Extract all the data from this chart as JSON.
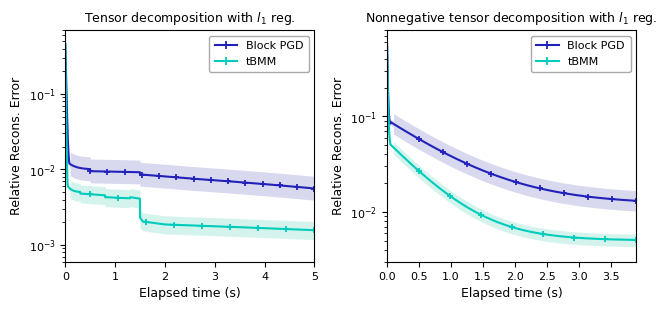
{
  "left_title": "Tensor decomposition with $l_1$ reg.",
  "right_title": "Nonnegative tensor decomposition with $l_1$ reg.",
  "xlabel": "Elapsed time (s)",
  "ylabel": "Relative Recons. Error",
  "color_pgd": "#2222bb",
  "color_tbmm": "#00ccbb",
  "color_pgd_fill": "#aaaadd",
  "color_tbmm_fill": "#88ddcc",
  "left_xlim": [
    0,
    5
  ],
  "left_ylim": [
    0.0006,
    0.7
  ],
  "left_xticks": [
    0,
    1,
    2,
    3,
    4,
    5
  ],
  "left_yticks": [
    0.001,
    0.01,
    0.1
  ],
  "right_xlim": [
    0.0,
    3.9
  ],
  "right_ylim": [
    0.003,
    0.8
  ],
  "right_xticks": [
    0.0,
    0.5,
    1.0,
    1.5,
    2.0,
    2.5,
    3.0,
    3.5
  ],
  "right_yticks": [
    0.01,
    0.1
  ],
  "marker_style": "+",
  "marker_size": 5,
  "linewidth": 1.5
}
